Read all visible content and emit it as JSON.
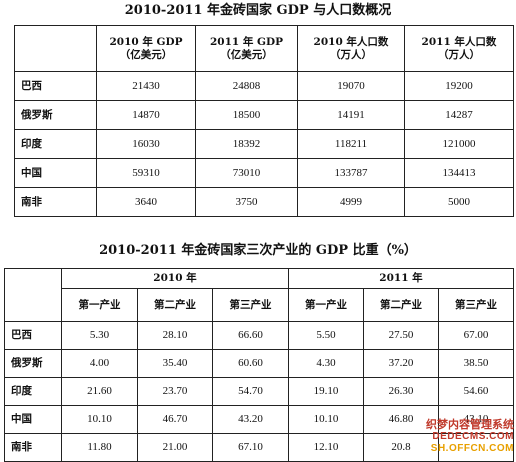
{
  "table1": {
    "title": "2010-2011 年金砖国家 GDP 与人口数概况",
    "headers": [
      {
        "line1": "",
        "line2": ""
      },
      {
        "line1": "2010 年 GDP",
        "line2": "（亿美元）"
      },
      {
        "line1": "2011 年 GDP",
        "line2": "（亿美元）"
      },
      {
        "line1": "2010 年人口数",
        "line2": "（万人）"
      },
      {
        "line1": "2011 年人口数",
        "line2": "（万人）"
      }
    ],
    "rows": [
      {
        "country": "巴西",
        "values": [
          "21430",
          "24808",
          "19070",
          "19200"
        ]
      },
      {
        "country": "俄罗斯",
        "values": [
          "14870",
          "18500",
          "14191",
          "14287"
        ]
      },
      {
        "country": "印度",
        "values": [
          "16030",
          "18392",
          "118211",
          "121000"
        ]
      },
      {
        "country": "中国",
        "values": [
          "59310",
          "73010",
          "133787",
          "134413"
        ]
      },
      {
        "country": "南非",
        "values": [
          "3640",
          "3750",
          "4999",
          "5000"
        ]
      }
    ]
  },
  "table2": {
    "title": "2010-2011 年金砖国家三次产业的 GDP 比重（%）",
    "years": [
      "2010 年",
      "2011 年"
    ],
    "sectors": [
      "第一产业",
      "第二产业",
      "第三产业",
      "第一产业",
      "第二产业",
      "第三产业"
    ],
    "rows": [
      {
        "country": "巴西",
        "values": [
          "5.30",
          "28.10",
          "66.60",
          "5.50",
          "27.50",
          "67.00"
        ]
      },
      {
        "country": "俄罗斯",
        "values": [
          "4.00",
          "35.40",
          "60.60",
          "4.30",
          "37.20",
          "38.50"
        ]
      },
      {
        "country": "印度",
        "values": [
          "21.60",
          "23.70",
          "54.70",
          "19.10",
          "26.30",
          "54.60"
        ]
      },
      {
        "country": "中国",
        "values": [
          "10.10",
          "46.70",
          "43.20",
          "10.10",
          "46.80",
          "43.10"
        ]
      },
      {
        "country": "南非",
        "values": [
          "11.80",
          "21.00",
          "67.10",
          "12.10",
          "20.8",
          ""
        ]
      }
    ]
  },
  "watermark": {
    "line1": "织梦内容管理系统",
    "line2": "DEDECMS.COM",
    "line3": "SH.OFFCN.COM"
  }
}
